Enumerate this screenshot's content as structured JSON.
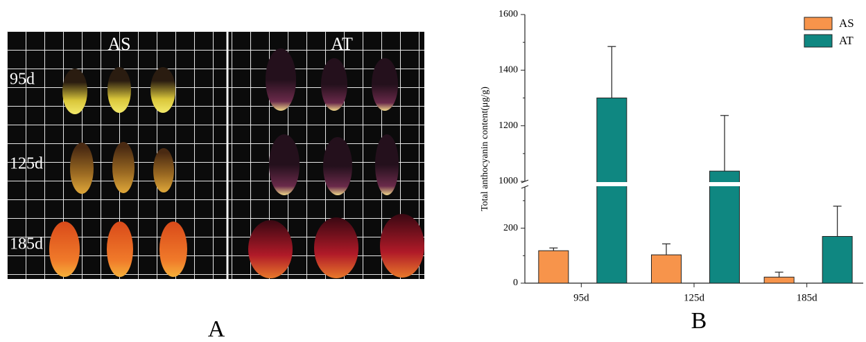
{
  "panel_a": {
    "label": "A",
    "columns": [
      "AS",
      "AT"
    ],
    "rows": [
      "95d",
      "125d",
      "185d"
    ]
  },
  "chart_data": {
    "type": "bar",
    "panel_label": "B",
    "y_label": "Total anthocyanin content(μg/g)",
    "categories": [
      "95d",
      "125d",
      "185d"
    ],
    "series": [
      {
        "name": "AS",
        "color": "#f7944b",
        "values": [
          118,
          103,
          22
        ],
        "errors": [
          10,
          40,
          18
        ]
      },
      {
        "name": "AT",
        "color": "#0f8781",
        "values": [
          1300,
          1037,
          170
        ],
        "errors": [
          185,
          200,
          110
        ]
      }
    ],
    "ylim": [
      0,
      1600
    ],
    "ybreak": [
      350,
      1000
    ],
    "yticks": [
      0,
      200,
      1000,
      1200,
      1400,
      1600
    ],
    "yminor": [
      100,
      300,
      1100,
      1300,
      1500
    ],
    "legend": "upper right"
  }
}
